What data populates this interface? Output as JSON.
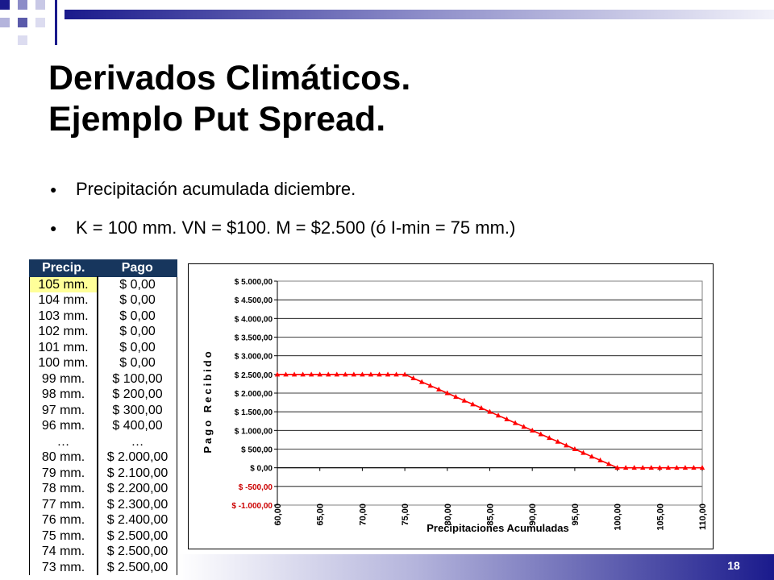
{
  "slide": {
    "title_line1": "Derivados Climáticos.",
    "title_line2": "Ejemplo Put Spread.",
    "bullets": [
      "Precipitación acumulada diciembre.",
      "K = 100 mm. VN = $100. M = $2.500 (ó I-min = 75 mm.)"
    ],
    "page_number": "18"
  },
  "table": {
    "headers": [
      "Precip.",
      "Pago"
    ],
    "rows": [
      [
        "105 mm.",
        "$ 0,00"
      ],
      [
        "104 mm.",
        "$ 0,00"
      ],
      [
        "103 mm.",
        "$ 0,00"
      ],
      [
        "102 mm.",
        "$ 0,00"
      ],
      [
        "101 mm.",
        "$ 0,00"
      ],
      [
        "100 mm.",
        "$ 0,00"
      ],
      [
        "99 mm.",
        "$ 100,00"
      ],
      [
        "98 mm.",
        "$ 200,00"
      ],
      [
        "97 mm.",
        "$ 300,00"
      ],
      [
        "96 mm.",
        "$ 400,00"
      ],
      [
        "…",
        "…"
      ],
      [
        "80 mm.",
        "$ 2.000,00"
      ],
      [
        "79 mm.",
        "$ 2.100,00"
      ],
      [
        "78 mm.",
        "$ 2.200,00"
      ],
      [
        "77 mm.",
        "$ 2.300,00"
      ],
      [
        "76 mm.",
        "$ 2.400,00"
      ],
      [
        "75 mm.",
        "$ 2.500,00"
      ],
      [
        "74 mm.",
        "$ 2.500,00"
      ],
      [
        "73 mm.",
        "$ 2.500,00"
      ]
    ]
  },
  "chart_data": {
    "type": "line",
    "xlabel": "Precipitaciones Acumuladas",
    "ylabel": "Pago Recibido",
    "xlim": [
      60,
      110
    ],
    "ylim": [
      -1000,
      5000
    ],
    "x_ticks": [
      "60,00",
      "65,00",
      "70,00",
      "75,00",
      "80,00",
      "85,00",
      "90,00",
      "95,00",
      "100,00",
      "105,00",
      "110,00"
    ],
    "y_ticks": [
      {
        "value": 5000,
        "label": "$ 5.000,00",
        "negative": false
      },
      {
        "value": 4500,
        "label": "$ 4.500,00",
        "negative": false
      },
      {
        "value": 4000,
        "label": "$ 4.000,00",
        "negative": false
      },
      {
        "value": 3500,
        "label": "$ 3.500,00",
        "negative": false
      },
      {
        "value": 3000,
        "label": "$ 3.000,00",
        "negative": false
      },
      {
        "value": 2500,
        "label": "$ 2.500,00",
        "negative": false
      },
      {
        "value": 2000,
        "label": "$ 2.000,00",
        "negative": false
      },
      {
        "value": 1500,
        "label": "$ 1.500,00",
        "negative": false
      },
      {
        "value": 1000,
        "label": "$ 1.000,00",
        "negative": false
      },
      {
        "value": 500,
        "label": "$ 500,00",
        "negative": false
      },
      {
        "value": 0,
        "label": "$ 0,00",
        "negative": false
      },
      {
        "value": -500,
        "label": "$ -500,00",
        "negative": true
      },
      {
        "value": -1000,
        "label": "$ -1.000,00",
        "negative": true
      }
    ],
    "grid": true,
    "series": [
      {
        "color": "#ff0000",
        "x": [
          60,
          61,
          62,
          63,
          64,
          65,
          66,
          67,
          68,
          69,
          70,
          71,
          72,
          73,
          74,
          75,
          76,
          77,
          78,
          79,
          80,
          81,
          82,
          83,
          84,
          85,
          86,
          87,
          88,
          89,
          90,
          91,
          92,
          93,
          94,
          95,
          96,
          97,
          98,
          99,
          100,
          101,
          102,
          103,
          104,
          105,
          106,
          107,
          108,
          109,
          110
        ],
        "y": [
          2500,
          2500,
          2500,
          2500,
          2500,
          2500,
          2500,
          2500,
          2500,
          2500,
          2500,
          2500,
          2500,
          2500,
          2500,
          2500,
          2400,
          2300,
          2200,
          2100,
          2000,
          1900,
          1800,
          1700,
          1600,
          1500,
          1400,
          1300,
          1200,
          1100,
          1000,
          900,
          800,
          700,
          600,
          500,
          400,
          300,
          200,
          100,
          0,
          0,
          0,
          0,
          0,
          0,
          0,
          0,
          0,
          0,
          0
        ]
      }
    ]
  },
  "colors": {
    "deco_dark": "#1a1a8c",
    "deco_light": "#8c8cc8",
    "table_header": "#17365d",
    "highlight": "#ffff99",
    "series": "#ff0000",
    "negative_tick": "#cc0000"
  }
}
